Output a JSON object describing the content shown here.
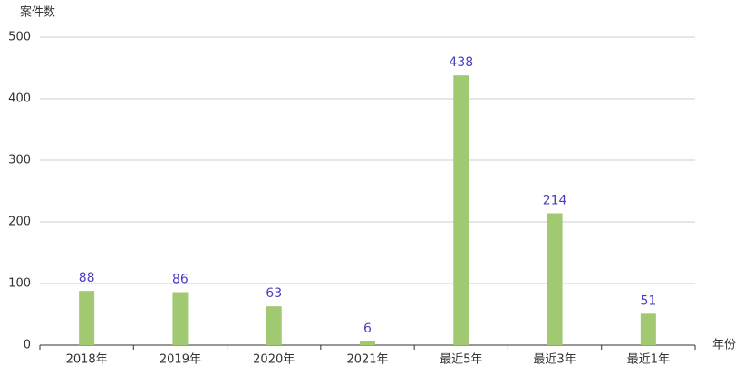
{
  "chart_data": {
    "type": "bar",
    "y_axis_title": "案件数",
    "x_axis_title": "年份",
    "categories": [
      "2018年",
      "2019年",
      "2020年",
      "2021年",
      "最近5年",
      "最近3年",
      "最近1年"
    ],
    "values": [
      88,
      86,
      63,
      6,
      438,
      214,
      51
    ],
    "color": "#a0c972",
    "ylim": [
      0,
      500
    ],
    "yticks": [
      0,
      100,
      200,
      300,
      400,
      500
    ],
    "grid": true
  }
}
